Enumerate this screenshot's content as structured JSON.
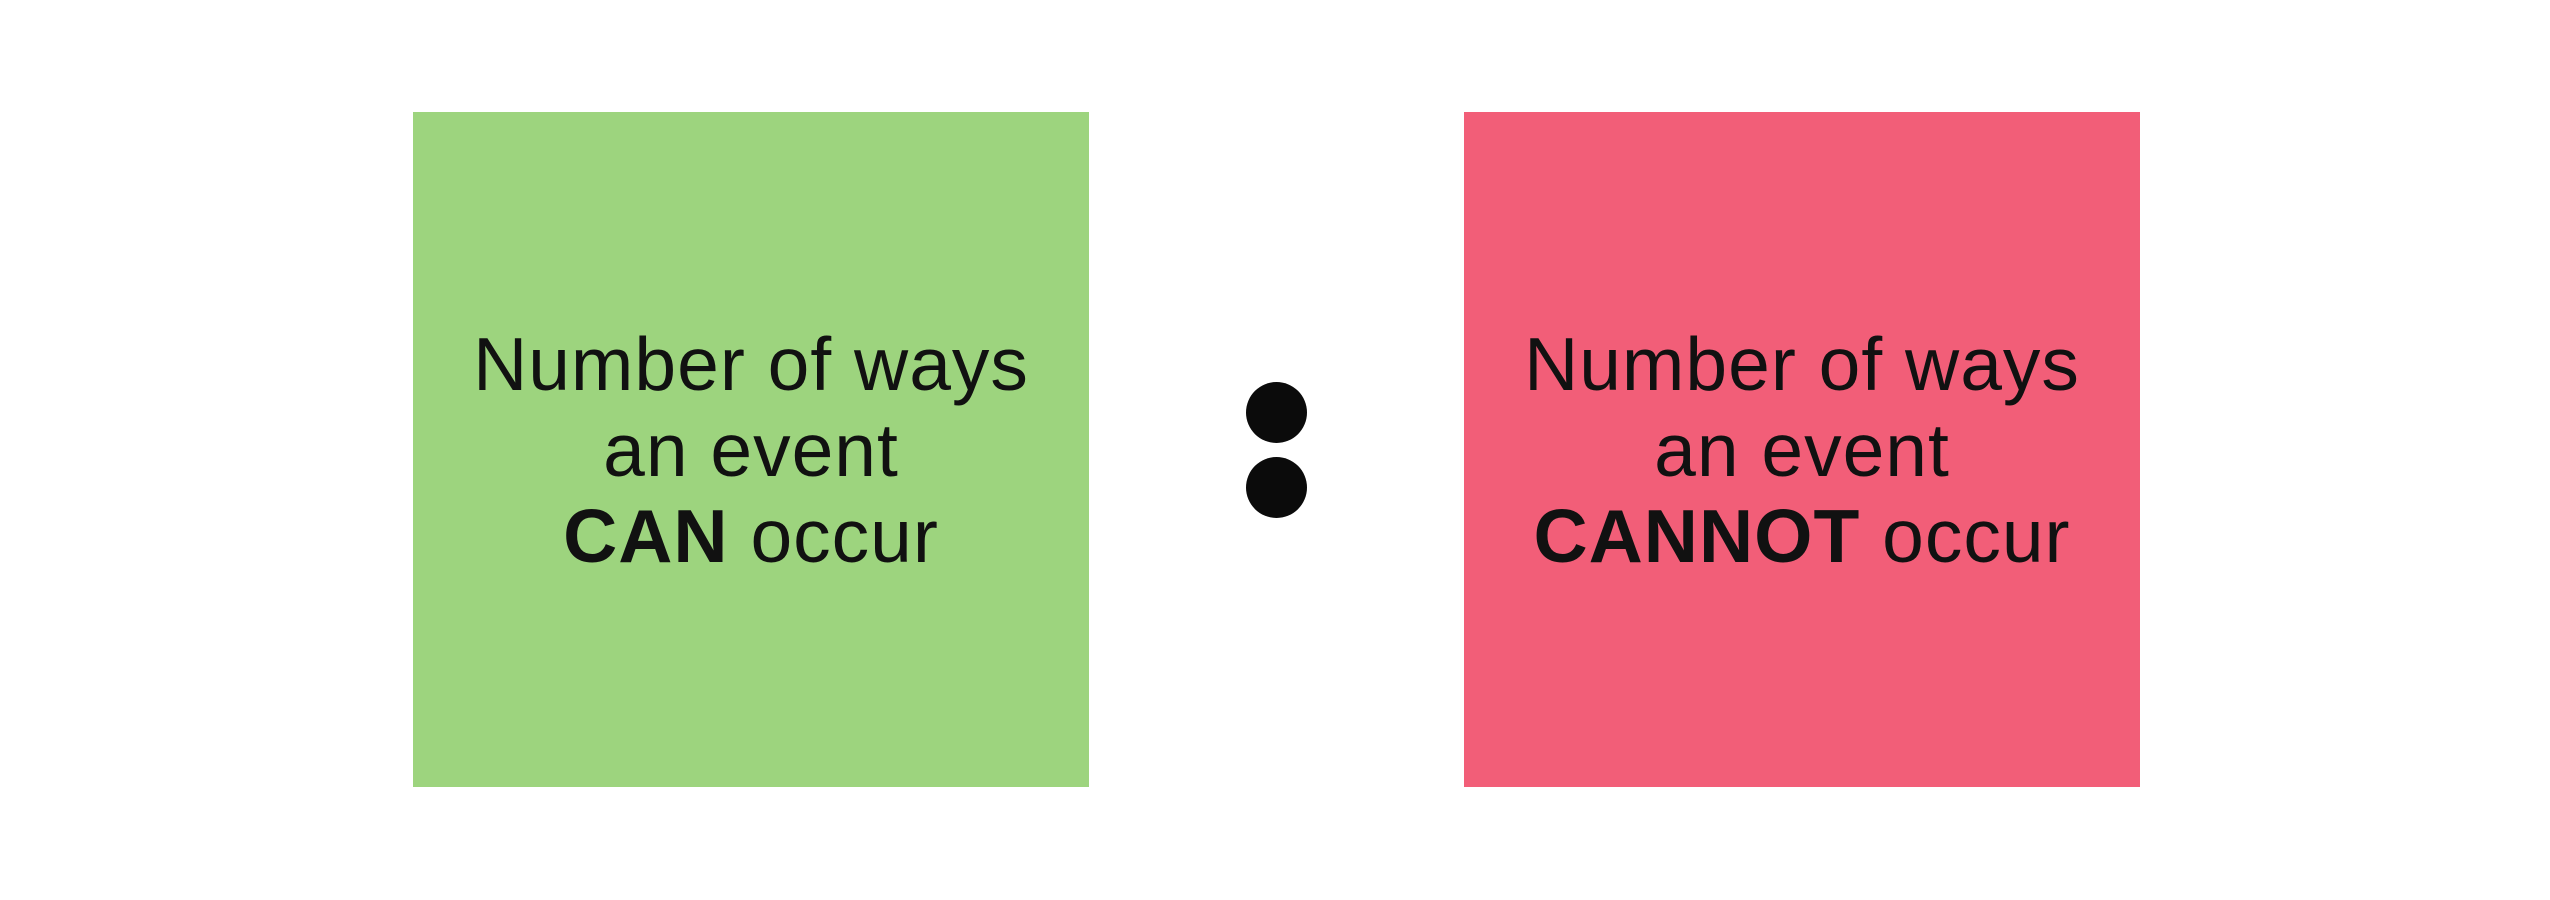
{
  "left_box": {
    "color": "#9dd47e",
    "line1": "Number of ways",
    "line2": "an event",
    "emphasis": "CAN",
    "tail": " occur"
  },
  "separator": {
    "symbol": "ratio-colon"
  },
  "right_box": {
    "color": "#f25e78",
    "line1": "Number of ways",
    "line2": "an event",
    "emphasis": "CANNOT",
    "tail": " occur"
  }
}
